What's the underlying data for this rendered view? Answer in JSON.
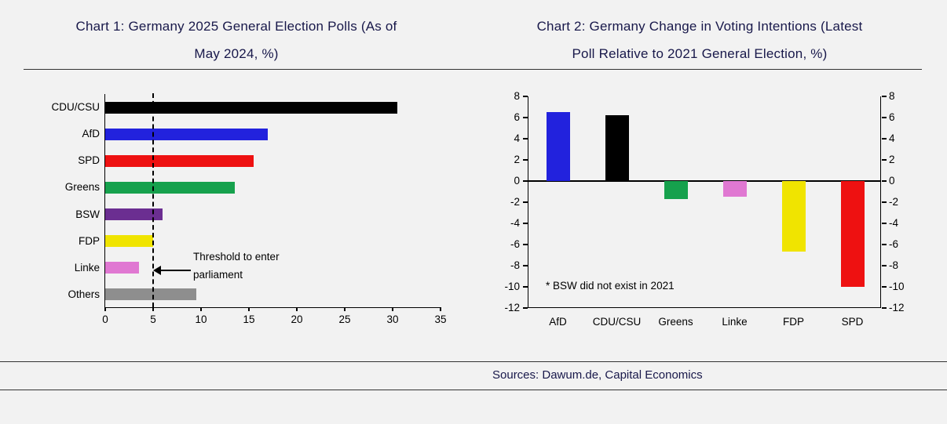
{
  "page": {
    "background": "#f2f2f2",
    "title_color": "#18184a"
  },
  "chart1": {
    "title_line1": "Chart 1: Germany 2025 General Election Polls (As of",
    "title_line2": "May 2024, %)",
    "annotation_line1": "Threshold to enter",
    "annotation_line2": "parliament"
  },
  "chart2": {
    "title_line1": "Chart 2: Germany Change in Voting Intentions (Latest",
    "title_line2": "Poll Relative to 2021 General Election, %)",
    "annotation": "* BSW did not exist in 2021"
  },
  "footer": {
    "sources": "Sources: Dawum.de, Capital Economics"
  },
  "chart_data": [
    {
      "type": "bar",
      "orientation": "horizontal",
      "title": "Chart 1: Germany 2025 General Election Polls (As of May 2024, %)",
      "categories": [
        "CDU/CSU",
        "AfD",
        "SPD",
        "Greens",
        "BSW",
        "FDP",
        "Linke",
        "Others"
      ],
      "values": [
        30.5,
        17,
        15.5,
        13.5,
        6,
        5,
        3.5,
        9.5
      ],
      "colors": [
        "#000000",
        "#2222dd",
        "#ee1111",
        "#16a14d",
        "#6b2e91",
        "#f0e400",
        "#e078d2",
        "#8e8e8e"
      ],
      "xlim": [
        0,
        35
      ],
      "xticks": [
        0,
        5,
        10,
        15,
        20,
        25,
        30,
        35
      ],
      "grid": false,
      "threshold_line": {
        "value": 5,
        "style": "dashed",
        "label": "Threshold to enter parliament"
      }
    },
    {
      "type": "bar",
      "orientation": "vertical",
      "title": "Chart 2: Germany Change in Voting Intentions (Latest Poll Relative to 2021 General Election, %)",
      "categories": [
        "AfD",
        "CDU/CSU",
        "Greens",
        "Linke",
        "FDP",
        "SPD"
      ],
      "values": [
        6.5,
        6.2,
        -1.7,
        -1.5,
        -6.7,
        -10
      ],
      "colors": [
        "#2222dd",
        "#000000",
        "#16a14d",
        "#e078d2",
        "#f0e400",
        "#ee1111"
      ],
      "ylim": [
        -12,
        8
      ],
      "yticks": [
        8,
        6,
        4,
        2,
        0,
        -2,
        -4,
        -6,
        -8,
        -10,
        -12
      ],
      "grid": false,
      "annotation": "* BSW did not exist in 2021"
    }
  ]
}
